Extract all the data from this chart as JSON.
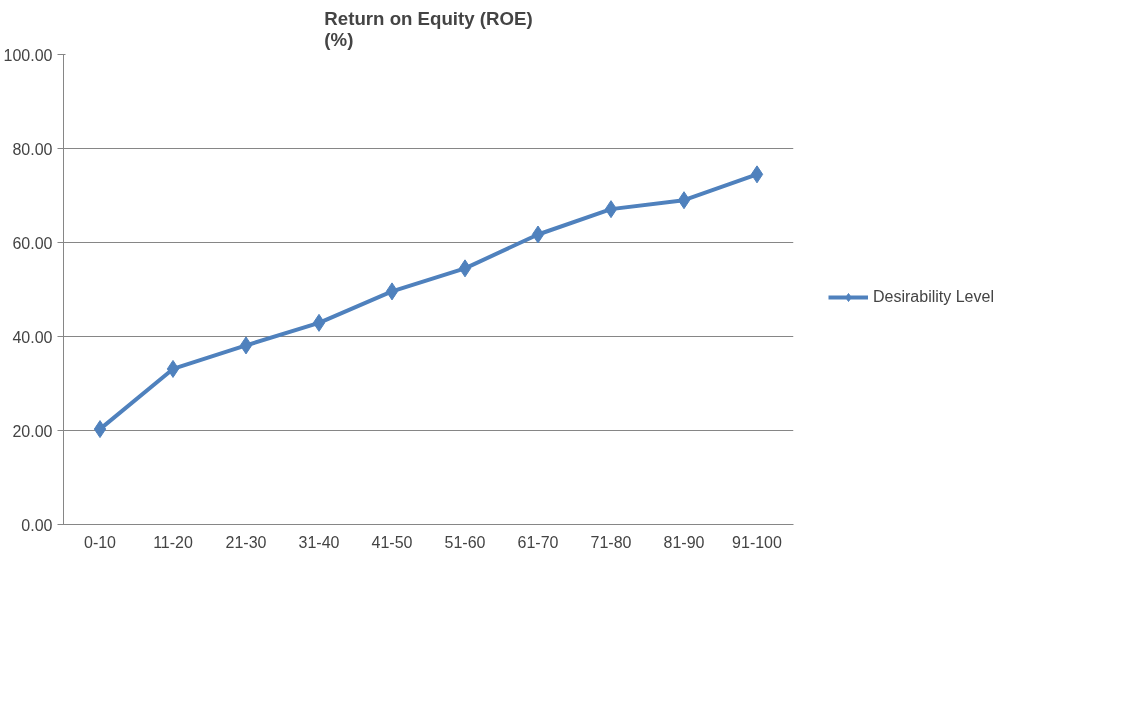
{
  "chart_data": {
    "type": "line",
    "title": "Return on Equity (ROE)\n(%)",
    "categories": [
      "0-10",
      "11-20",
      "21-30",
      "31-40",
      "41-50",
      "51-60",
      "61-70",
      "71-80",
      "81-90",
      "91-100"
    ],
    "series": [
      {
        "name": "Desirability Level",
        "color": "#4f81bd",
        "values": [
          20.3,
          33.1,
          38.1,
          42.9,
          49.6,
          54.5,
          61.7,
          67.1,
          69.0,
          74.5
        ]
      }
    ],
    "ylim": [
      0,
      100
    ],
    "yticks": [
      {
        "value": 0,
        "label": "0.00"
      },
      {
        "value": 20,
        "label": "20.00"
      },
      {
        "value": 40,
        "label": "40.00"
      },
      {
        "value": 60,
        "label": "60.00"
      },
      {
        "value": 80,
        "label": "80.00"
      },
      {
        "value": 100,
        "label": "100.00"
      }
    ],
    "grid": "y",
    "legend": "right",
    "marker": "diamond",
    "line_style": "solid"
  }
}
